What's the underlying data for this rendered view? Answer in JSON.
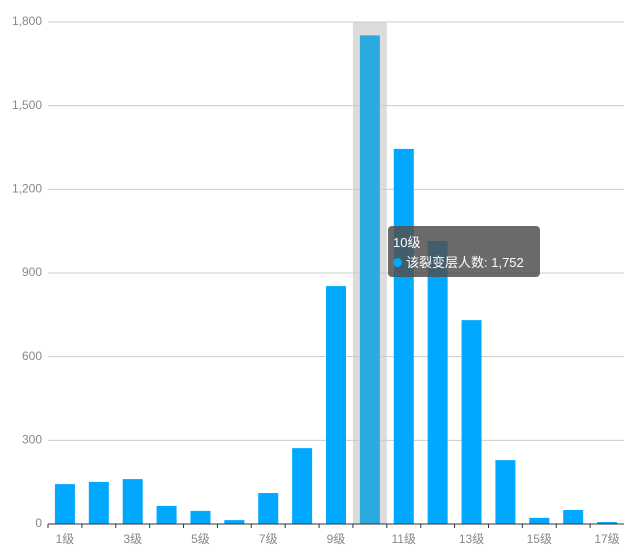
{
  "chart_data": {
    "type": "bar",
    "categories": [
      "1级",
      null,
      "3级",
      null,
      "5级",
      null,
      "7级",
      null,
      "9级",
      null,
      "11级",
      null,
      "13级",
      null,
      "15级",
      null,
      "17级"
    ],
    "values": [
      143,
      151,
      161,
      65,
      47,
      14,
      111,
      272,
      853,
      1752,
      1345,
      1015,
      731,
      229,
      22,
      50,
      7
    ],
    "color": "#00a8ff",
    "highlight_color": "#29abe0",
    "highlight_index": 9,
    "ylim": [
      0,
      1800
    ],
    "yticks": [
      0,
      300,
      600,
      900,
      {
        "value": 1200,
        "label": "1,200"
      },
      {
        "value": 1500,
        "label": "1,500"
      },
      {
        "value": 1800,
        "label": "1,800"
      }
    ],
    "grid": true,
    "tooltip": {
      "title": "10级",
      "text": "该裂变层人数: 1,752"
    }
  }
}
